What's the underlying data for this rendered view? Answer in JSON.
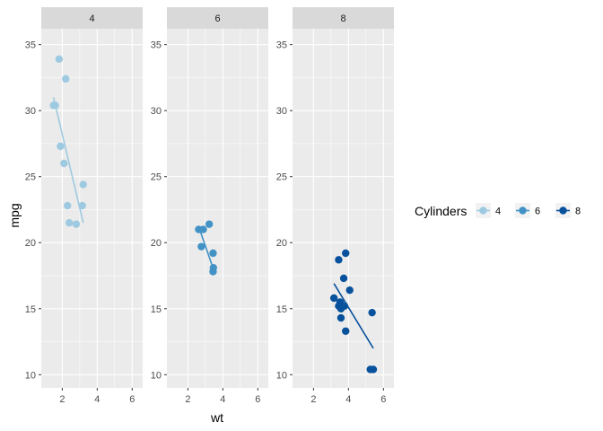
{
  "chart_data": {
    "type": "scatter",
    "facet_by": "cyl",
    "xlabel": "wt",
    "ylabel": "mpg",
    "xlim": [
      0.8,
      6.6
    ],
    "ylim": [
      9.0,
      36.2
    ],
    "x_ticks": [
      2,
      4,
      6
    ],
    "y_ticks": [
      10,
      15,
      20,
      25,
      30,
      35
    ],
    "grid": true,
    "legend": {
      "title": "Cylinders",
      "placement": "right",
      "entries": [
        "4",
        "6",
        "8"
      ]
    },
    "colors": {
      "4": "#9ecae1",
      "6": "#4292c6",
      "8": "#08519c",
      "panel_bg": "#ebebeb",
      "strip_bg": "#d9d9d9",
      "grid": "#ffffff"
    },
    "panels": [
      {
        "label": "4",
        "points": [
          [
            1.82,
            33.9
          ],
          [
            2.2,
            32.4
          ],
          [
            1.5,
            30.4
          ],
          [
            1.6,
            30.4
          ],
          [
            1.9,
            27.3
          ],
          [
            2.1,
            26.0
          ],
          [
            3.2,
            24.4
          ],
          [
            3.15,
            22.8
          ],
          [
            2.3,
            22.8
          ],
          [
            2.4,
            21.5
          ],
          [
            2.8,
            21.4
          ]
        ],
        "fit": [
          [
            1.5,
            31.0
          ],
          [
            3.2,
            21.5
          ]
        ]
      },
      {
        "label": "6",
        "points": [
          [
            2.62,
            21.0
          ],
          [
            2.88,
            21.0
          ],
          [
            3.22,
            21.4
          ],
          [
            2.77,
            19.7
          ],
          [
            3.44,
            19.2
          ],
          [
            3.46,
            18.1
          ],
          [
            3.44,
            17.8
          ]
        ],
        "fit": [
          [
            2.62,
            21.2
          ],
          [
            3.46,
            18.0
          ]
        ]
      },
      {
        "label": "8",
        "points": [
          [
            3.44,
            18.7
          ],
          [
            3.84,
            19.2
          ],
          [
            3.73,
            17.3
          ],
          [
            4.07,
            16.4
          ],
          [
            3.17,
            15.8
          ],
          [
            3.57,
            15.0
          ],
          [
            3.52,
            15.5
          ],
          [
            3.44,
            15.2
          ],
          [
            3.78,
            15.2
          ],
          [
            3.57,
            14.3
          ],
          [
            3.84,
            13.3
          ],
          [
            5.35,
            14.7
          ],
          [
            5.25,
            10.4
          ],
          [
            5.42,
            10.4
          ]
        ],
        "fit": [
          [
            3.17,
            16.9
          ],
          [
            5.42,
            12.0
          ]
        ]
      }
    ]
  }
}
